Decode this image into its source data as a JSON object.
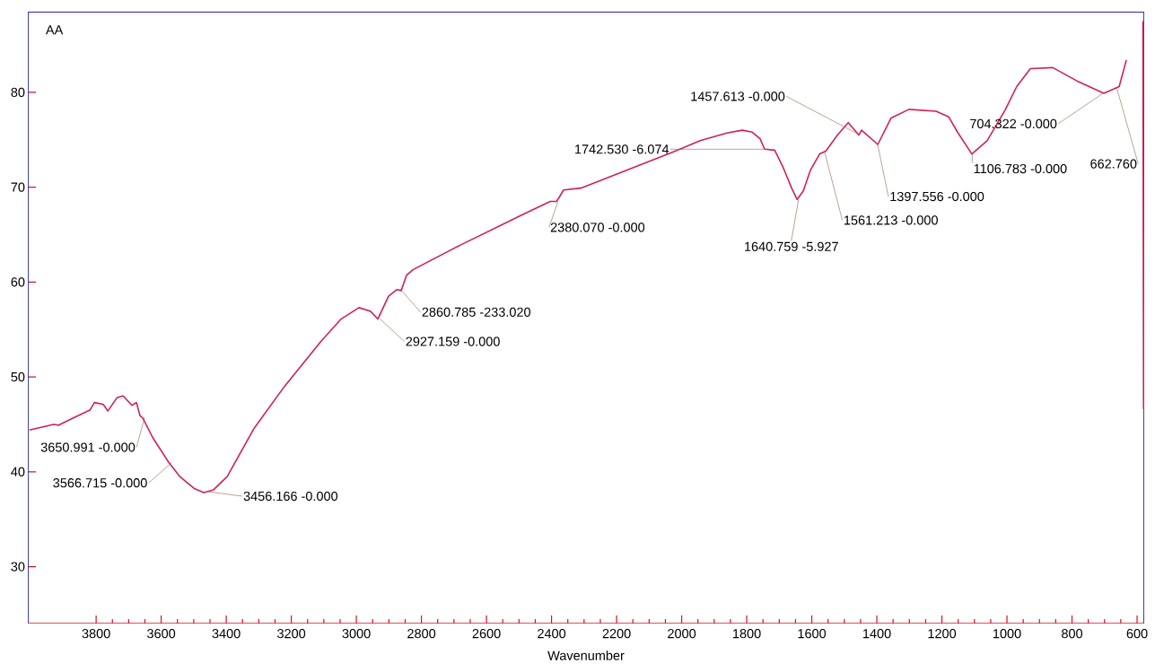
{
  "chart_data": {
    "type": "line",
    "title": "AA",
    "xlabel": "Wavenumber",
    "color": "#d0205a",
    "x": [
      4005,
      3930,
      3916,
      3874,
      3819,
      3805,
      3778,
      3764,
      3736,
      3717,
      3690,
      3676,
      3665,
      3657,
      3626,
      3577,
      3543,
      3497,
      3469,
      3439,
      3397,
      3314,
      3221,
      3110,
      3047,
      2992,
      2956,
      2934,
      2901,
      2876,
      2862,
      2846,
      2826,
      2680,
      2495,
      2404,
      2385,
      2377,
      2363,
      2310,
      2034,
      1943,
      1861,
      1814,
      1783,
      1759,
      1745,
      1714,
      1687,
      1662,
      1645,
      1626,
      1604,
      1576,
      1557,
      1521,
      1488,
      1455,
      1447,
      1397,
      1356,
      1301,
      1218,
      1179,
      1152,
      1108,
      1061,
      1006,
      970,
      928,
      859,
      785,
      702,
      655,
      633,
      611,
      582,
      580
    ],
    "values": [
      44.4,
      45.0,
      44.9,
      45.6,
      46.5,
      47.3,
      47.1,
      46.4,
      47.8,
      48.0,
      47.0,
      47.3,
      45.9,
      45.7,
      43.6,
      41.0,
      39.5,
      38.2,
      37.8,
      38.1,
      39.5,
      44.6,
      49.0,
      53.7,
      56.1,
      57.3,
      56.9,
      56.1,
      58.5,
      59.2,
      59.1,
      60.7,
      61.3,
      63.9,
      67.0,
      68.5,
      68.5,
      68.9,
      69.7,
      69.9,
      73.6,
      74.9,
      75.7,
      76.0,
      75.8,
      75.1,
      74.0,
      73.9,
      72.0,
      69.9,
      68.7,
      69.6,
      71.8,
      73.5,
      73.8,
      75.5,
      76.8,
      75.5,
      76.0,
      74.5,
      77.3,
      78.2,
      78.0,
      77.4,
      75.8,
      73.5,
      74.9,
      78.1,
      80.6,
      82.5,
      82.6,
      81.2,
      79.9,
      80.6,
      83.4,
      null,
      87.5,
      46.6
    ],
    "xlim": [
      4010,
      578
    ],
    "ylim": [
      24,
      88.5
    ],
    "xticks": [
      3800,
      3600,
      3400,
      3200,
      3000,
      2800,
      2600,
      2400,
      2200,
      2000,
      1800,
      1600,
      1400,
      1200,
      1000,
      800,
      600
    ],
    "yticks": [
      30,
      40,
      50,
      60,
      70,
      80
    ],
    "annotations": [
      {
        "text": "3650.991  -0.000",
        "x": 3650.991,
        "y": 45.7
      },
      {
        "text": "3566.715  -0.000",
        "x": 3566.715,
        "y": 41.0
      },
      {
        "text": "3456.166  -0.000",
        "x": 3456.166,
        "y": 37.9
      },
      {
        "text": "2927.159  -0.000",
        "x": 2927.159,
        "y": 56.1
      },
      {
        "text": "2860.785  -233.020",
        "x": 2860.785,
        "y": 59.1
      },
      {
        "text": "2380.070  -0.000",
        "x": 2380.07,
        "y": 68.5
      },
      {
        "text": "1742.530  -6.074",
        "x": 1742.53,
        "y": 74.0
      },
      {
        "text": "1640.759  -5.927",
        "x": 1640.759,
        "y": 68.7
      },
      {
        "text": "1561.213  -0.000",
        "x": 1561.213,
        "y": 73.8
      },
      {
        "text": "1457.613  -0.000",
        "x": 1457.613,
        "y": 75.6
      },
      {
        "text": "1397.556  -0.000",
        "x": 1397.556,
        "y": 74.5
      },
      {
        "text": "1106.783  -0.000",
        "x": 1106.783,
        "y": 73.5
      },
      {
        "text": "704.322  -0.000",
        "x": 704.322,
        "y": 79.9
      },
      {
        "text": "662.760",
        "x": 662.76,
        "y": 80.5
      }
    ]
  }
}
